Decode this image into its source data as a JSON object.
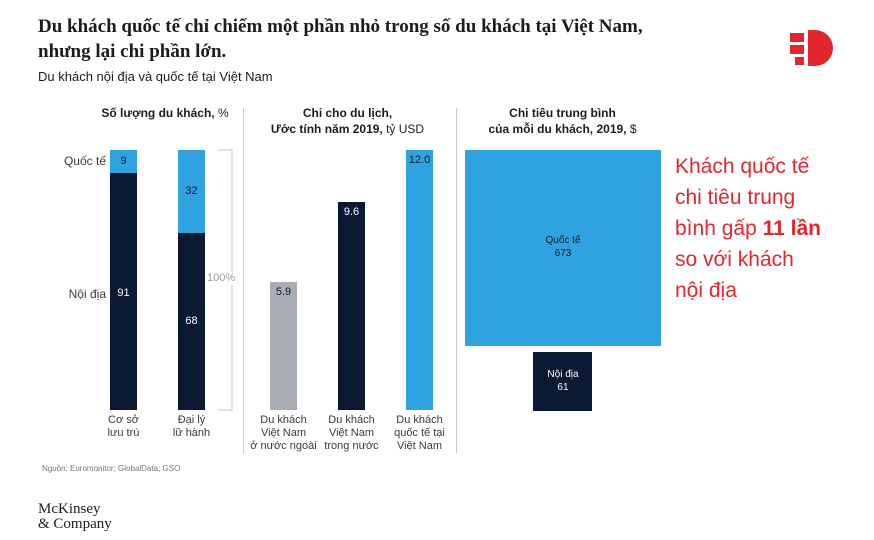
{
  "headline": "Du khách quốc tế chỉ chiếm một phần nhỏ trong số du khách tại Việt Nam, nhưng lại chi phần lớn.",
  "subtitle": "Du khách nội địa và quốc tế tại Việt Nam",
  "colors": {
    "navy": "#0a1a33",
    "blue": "#2fa3e0",
    "gray": "#a8adb3",
    "red": "#e3262d"
  },
  "panel1": {
    "title": "Số lượng du khách,",
    "unit": " %",
    "row_labels": [
      "Quốc tế",
      "Nội địa"
    ],
    "hundred_label": "100%"
  },
  "panel2": {
    "title_line1": "Chi cho du lịch,",
    "title_line2": "Ước tính năm 2019,",
    "unit": " tỷ USD"
  },
  "panel3": {
    "title_line1": "Chi tiêu trung bình",
    "title_line2": "của mỗi du khách, 2019,",
    "unit": " $"
  },
  "callout": {
    "line1": "Khách quốc tế",
    "line2": "chi tiêu trung",
    "line3_pre": "bình gấp ",
    "line3_bold": "11 lần",
    "line4": "so với khách",
    "line5": "nội địa"
  },
  "source": "Nguồn: Euromonitor; GlobalData; GSO",
  "brand": {
    "line1": "McKinsey",
    "line2": "& Company"
  },
  "chart_data": [
    {
      "type": "bar",
      "stacked": true,
      "title": "Số lượng du khách, %",
      "categories": [
        "Cơ sở lưu trú",
        "Đại lý lữ hành"
      ],
      "category_lines": [
        [
          "Cơ sở",
          "lưu trú"
        ],
        [
          "Đại lý",
          "lữ hành"
        ]
      ],
      "series": [
        {
          "name": "Nội địa",
          "values": [
            91,
            68
          ]
        },
        {
          "name": "Quốc tế",
          "values": [
            9,
            32
          ]
        }
      ],
      "ylim": [
        0,
        100
      ]
    },
    {
      "type": "bar",
      "title": "Chi cho du lịch, Ước tính năm 2019, tỷ USD",
      "categories": [
        "Du khách Việt Nam ở nước ngoài",
        "Du khách Việt Nam trong nước",
        "Du khách quốc tế tại Việt Nam"
      ],
      "category_lines": [
        [
          "Du khách",
          "Việt Nam",
          "ở nước ngoài"
        ],
        [
          "Du khách",
          "Việt Nam",
          "trong nước"
        ],
        [
          "Du khách",
          "quốc tế tại",
          "Việt Nam"
        ]
      ],
      "values": [
        5.9,
        9.6,
        12.0
      ],
      "value_labels": [
        "5.9",
        "9.6",
        "12.0"
      ],
      "ylim": [
        0,
        12.0
      ]
    },
    {
      "type": "area",
      "title": "Chi tiêu trung bình của mỗi du khách, 2019, $",
      "categories": [
        "Quốc tế",
        "Nội địa"
      ],
      "values": [
        673,
        61
      ]
    }
  ]
}
